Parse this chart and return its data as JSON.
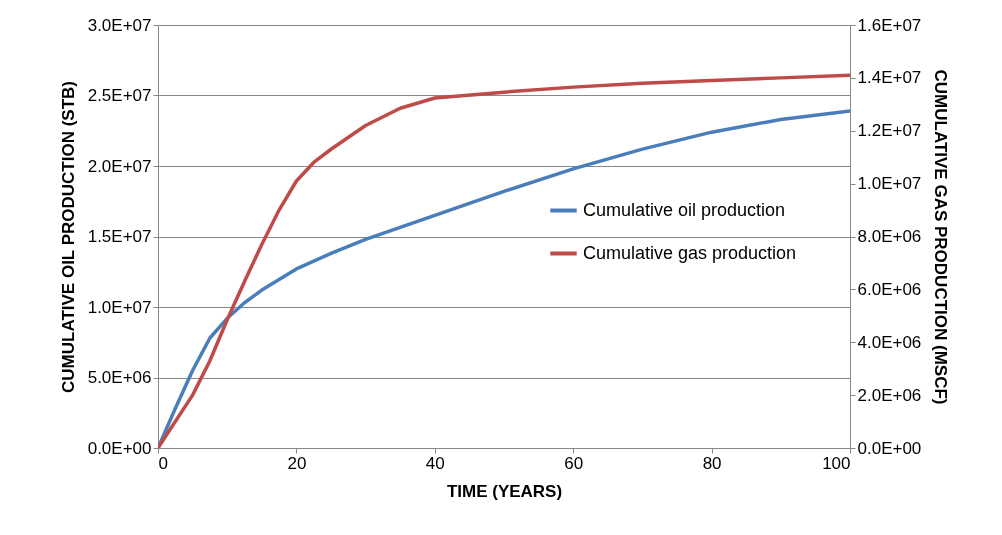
{
  "chart_data": {
    "type": "line",
    "xlabel": "TIME (YEARS)",
    "ylabel": "CUMULATIVE OIL PRODUCTION (STB)",
    "y2label": "CUMULATIVE GAS PRODUCTION (MSCF)",
    "xlim": [
      0,
      100
    ],
    "xticks": [
      0,
      20,
      40,
      60,
      80,
      100
    ],
    "ylim": [
      0,
      30000000
    ],
    "yticks": [
      {
        "value": 0,
        "label": "0.0E+00"
      },
      {
        "value": 5000000,
        "label": "5.0E+06"
      },
      {
        "value": 10000000,
        "label": "1.0E+07"
      },
      {
        "value": 15000000,
        "label": "1.5E+07"
      },
      {
        "value": 20000000,
        "label": "2.0E+07"
      },
      {
        "value": 25000000,
        "label": "2.5E+07"
      },
      {
        "value": 30000000,
        "label": "3.0E+07"
      }
    ],
    "y2lim": [
      0,
      16000000
    ],
    "y2ticks": [
      {
        "value": 0,
        "label": "0.0E+00"
      },
      {
        "value": 2000000,
        "label": "2.0E+06"
      },
      {
        "value": 4000000,
        "label": "4.0E+06"
      },
      {
        "value": 6000000,
        "label": "6.0E+06"
      },
      {
        "value": 8000000,
        "label": "8.0E+06"
      },
      {
        "value": 10000000,
        "label": "1.0E+07"
      },
      {
        "value": 12000000,
        "label": "1.2E+07"
      },
      {
        "value": 14000000,
        "label": "1.4E+07"
      },
      {
        "value": 16000000,
        "label": "1.6E+07"
      }
    ],
    "grid": "y",
    "legend": "right",
    "marker": "none",
    "line_style": "solid",
    "series": [
      {
        "name": "Cumulative oil production",
        "color": "#4a7ebb",
        "x": [
          0,
          2.5,
          5,
          7.5,
          10,
          12.5,
          15,
          20,
          25,
          30,
          40,
          50,
          60,
          70,
          80,
          90,
          100
        ],
        "values": [
          0,
          2800000,
          5500000,
          7800000,
          9200000,
          10300000,
          11200000,
          12700000,
          13800000,
          14800000,
          16500000,
          18200000,
          19800000,
          21200000,
          22400000,
          23300000,
          23900000
        ]
      },
      {
        "name": "Cumulative gas production",
        "color": "#be4b48",
        "axis": "y2",
        "x": [
          0,
          2.5,
          5,
          7.5,
          10,
          12.5,
          15,
          17.5,
          20,
          22.5,
          25,
          30,
          35,
          40,
          50,
          60,
          70,
          80,
          90,
          100
        ],
        "values": [
          0,
          1000000,
          2000000,
          3300000,
          4850000,
          6300000,
          7700000,
          9000000,
          10100000,
          10800000,
          11300000,
          12200000,
          12850000,
          13240000,
          13460000,
          13650000,
          13800000,
          13900000,
          14000000,
          14100000
        ]
      }
    ]
  }
}
